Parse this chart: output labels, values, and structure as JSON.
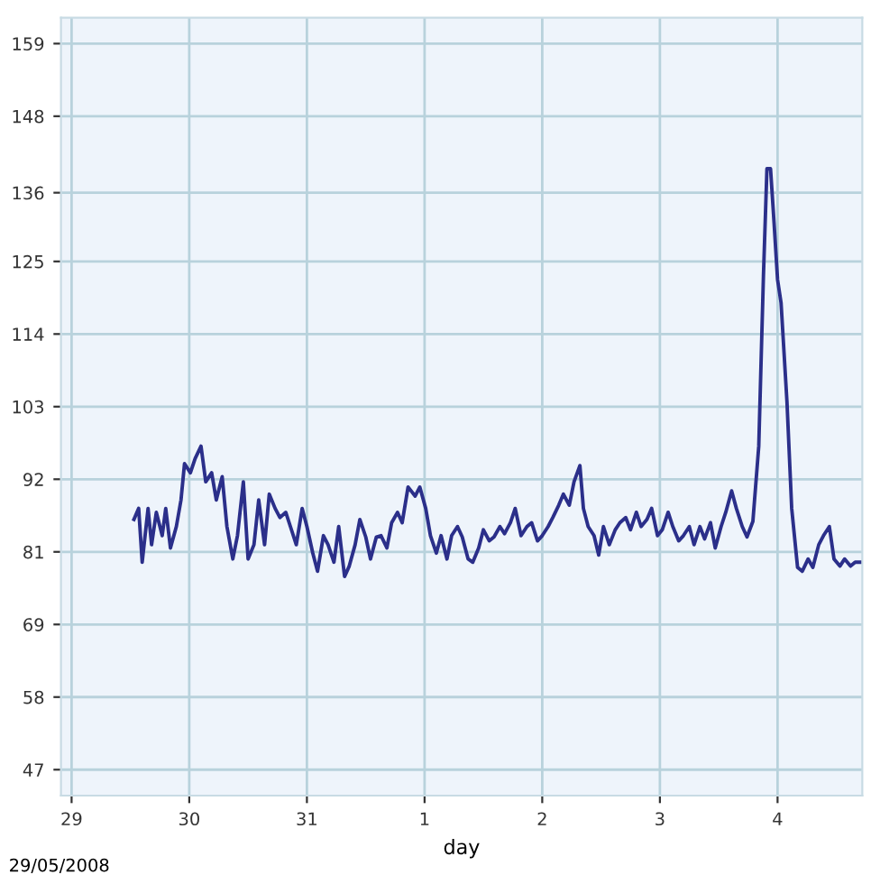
{
  "chart_data": {
    "type": "line",
    "xlabel": "day",
    "annotations": [
      "29/05/2008"
    ],
    "x": [
      "2008-05-29T12:43",
      "2008-05-29T13:41",
      "2008-05-29T14:24",
      "2008-05-29T15:36",
      "2008-05-29T16:19",
      "2008-05-29T17:17",
      "2008-05-29T18:29",
      "2008-05-29T19:12",
      "2008-05-29T20:10",
      "2008-05-29T21:22",
      "2008-05-29T22:19",
      "2008-05-29T23:02",
      "2008-05-30T00:14",
      "2008-05-30T01:12",
      "2008-05-30T02:24",
      "2008-05-30T03:22",
      "2008-05-30T04:34",
      "2008-05-30T05:31",
      "2008-05-30T06:43",
      "2008-05-30T07:41",
      "2008-05-30T08:53",
      "2008-05-30T09:50",
      "2008-05-30T11:02",
      "2008-05-30T12:00",
      "2008-05-30T13:12",
      "2008-05-30T14:10",
      "2008-05-30T15:22",
      "2008-05-30T16:19",
      "2008-05-30T17:31",
      "2008-05-30T18:29",
      "2008-05-30T19:41",
      "2008-05-30T20:38",
      "2008-05-30T21:50",
      "2008-05-30T23:02",
      "2008-05-31T00:00",
      "2008-05-31T01:12",
      "2008-05-31T02:10",
      "2008-05-31T03:22",
      "2008-05-31T04:19",
      "2008-05-31T05:31",
      "2008-05-31T06:29",
      "2008-05-31T07:41",
      "2008-05-31T08:38",
      "2008-05-31T09:50",
      "2008-05-31T10:48",
      "2008-05-31T12:00",
      "2008-05-31T12:58",
      "2008-05-31T14:10",
      "2008-05-31T15:07",
      "2008-05-31T16:19",
      "2008-05-31T17:17",
      "2008-05-31T18:29",
      "2008-05-31T19:26",
      "2008-05-31T20:38",
      "2008-05-31T22:05",
      "2008-05-31T23:02",
      "2008-06-01T00:14",
      "2008-06-01T01:12",
      "2008-06-01T02:24",
      "2008-06-01T03:22",
      "2008-06-01T04:34",
      "2008-06-01T05:31",
      "2008-06-01T06:43",
      "2008-06-01T07:41",
      "2008-06-01T08:53",
      "2008-06-01T09:50",
      "2008-06-01T11:02",
      "2008-06-01T12:00",
      "2008-06-01T13:12",
      "2008-06-01T14:10",
      "2008-06-01T15:22",
      "2008-06-01T16:19",
      "2008-06-01T17:31",
      "2008-06-01T18:29",
      "2008-06-01T19:41",
      "2008-06-01T20:53",
      "2008-06-01T21:50",
      "2008-06-01T23:02",
      "2008-06-02T00:00",
      "2008-06-02T01:12",
      "2008-06-02T02:10",
      "2008-06-02T03:22",
      "2008-06-02T04:19",
      "2008-06-02T05:31",
      "2008-06-02T06:29",
      "2008-06-02T07:41",
      "2008-06-02T08:24",
      "2008-06-02T09:22",
      "2008-06-02T10:34",
      "2008-06-02T11:31",
      "2008-06-02T12:29",
      "2008-06-02T13:41",
      "2008-06-02T14:53",
      "2008-06-02T15:50",
      "2008-06-02T17:02",
      "2008-06-02T18:00",
      "2008-06-02T19:12",
      "2008-06-02T20:10",
      "2008-06-02T21:22",
      "2008-06-02T22:19",
      "2008-06-02T23:31",
      "2008-06-03T00:29",
      "2008-06-03T01:41",
      "2008-06-03T02:38",
      "2008-06-03T03:50",
      "2008-06-03T04:48",
      "2008-06-03T06:00",
      "2008-06-03T06:58",
      "2008-06-03T08:10",
      "2008-06-03T09:07",
      "2008-06-03T10:19",
      "2008-06-03T11:17",
      "2008-06-03T12:29",
      "2008-06-03T13:26",
      "2008-06-03T14:38",
      "2008-06-03T15:36",
      "2008-06-03T16:48",
      "2008-06-03T17:46",
      "2008-06-03T18:58",
      "2008-06-03T20:10",
      "2008-06-03T21:07",
      "2008-06-03T21:50",
      "2008-06-03T22:34",
      "2008-06-03T23:17",
      "2008-06-04T00:00",
      "2008-06-04T00:43",
      "2008-06-04T01:55",
      "2008-06-04T02:53",
      "2008-06-04T04:05",
      "2008-06-04T05:02",
      "2008-06-04T06:14",
      "2008-06-04T07:12",
      "2008-06-04T08:24",
      "2008-06-04T09:22",
      "2008-06-04T10:34",
      "2008-06-04T11:31",
      "2008-06-04T12:43",
      "2008-06-04T13:41",
      "2008-06-04T14:53",
      "2008-06-04T15:50",
      "2008-06-04T17:02"
    ],
    "series": [
      {
        "color": "#2b2f8a",
        "values": [
          85.6,
          87.3,
          79.0,
          87.3,
          81.7,
          86.7,
          83.1,
          87.3,
          81.2,
          84.5,
          88.6,
          94.2,
          92.8,
          95.0,
          96.9,
          91.4,
          92.8,
          88.6,
          92.2,
          84.5,
          79.5,
          83.1,
          91.4,
          79.5,
          81.7,
          88.6,
          81.7,
          89.5,
          87.3,
          85.9,
          86.7,
          84.5,
          81.7,
          87.3,
          84.5,
          80.4,
          77.6,
          83.1,
          81.7,
          79.0,
          84.5,
          76.8,
          78.4,
          81.7,
          85.6,
          82.9,
          79.5,
          82.9,
          83.1,
          81.2,
          85.1,
          86.7,
          85.1,
          90.6,
          89.2,
          90.6,
          87.3,
          83.1,
          80.4,
          83.1,
          79.5,
          83.1,
          84.5,
          82.9,
          79.5,
          79.0,
          81.2,
          84.0,
          82.3,
          82.9,
          84.5,
          83.4,
          85.1,
          87.3,
          83.1,
          84.5,
          85.1,
          82.3,
          83.1,
          84.5,
          85.9,
          87.8,
          89.5,
          87.8,
          91.4,
          93.9,
          87.3,
          84.5,
          83.1,
          80.1,
          84.5,
          81.7,
          84.0,
          85.1,
          85.9,
          84.0,
          86.7,
          84.5,
          85.6,
          87.3,
          83.1,
          84.0,
          86.7,
          84.5,
          82.3,
          83.1,
          84.5,
          81.7,
          84.5,
          82.6,
          85.1,
          81.2,
          84.5,
          86.7,
          90.0,
          87.3,
          84.5,
          82.9,
          85.3,
          96.9,
          123.1,
          139.7,
          139.7,
          131.4,
          122.6,
          119.0,
          103.8,
          87.3,
          78.2,
          77.6,
          79.5,
          78.2,
          81.7,
          83.1,
          84.5,
          79.5,
          78.4,
          79.5,
          78.4,
          79.0,
          79.0
        ]
      }
    ],
    "xlim": [
      "2008-05-28T21:50",
      "2008-06-04T17:17"
    ],
    "xticks": [
      {
        "value": "2008-05-29",
        "label": "29"
      },
      {
        "value": "2008-05-30",
        "label": "30"
      },
      {
        "value": "2008-05-31",
        "label": "31"
      },
      {
        "value": "2008-06-01",
        "label": "1"
      },
      {
        "value": "2008-06-02",
        "label": "2"
      },
      {
        "value": "2008-06-03",
        "label": "3"
      },
      {
        "value": "2008-06-04",
        "label": "4"
      }
    ],
    "ylim": [
      43,
      163
    ],
    "yticks": [
      47,
      {
        "value": 58.2,
        "label": "58"
      },
      {
        "value": 69.4,
        "label": "69"
      },
      {
        "value": 80.6,
        "label": "81"
      },
      {
        "value": 91.8,
        "label": "92"
      },
      103,
      {
        "value": 114.2,
        "label": "114"
      },
      {
        "value": 125.4,
        "label": "125"
      },
      136,
      {
        "value": 147.8,
        "label": "148"
      },
      159
    ],
    "grid": true,
    "marker": "none",
    "line_style": "solid"
  }
}
